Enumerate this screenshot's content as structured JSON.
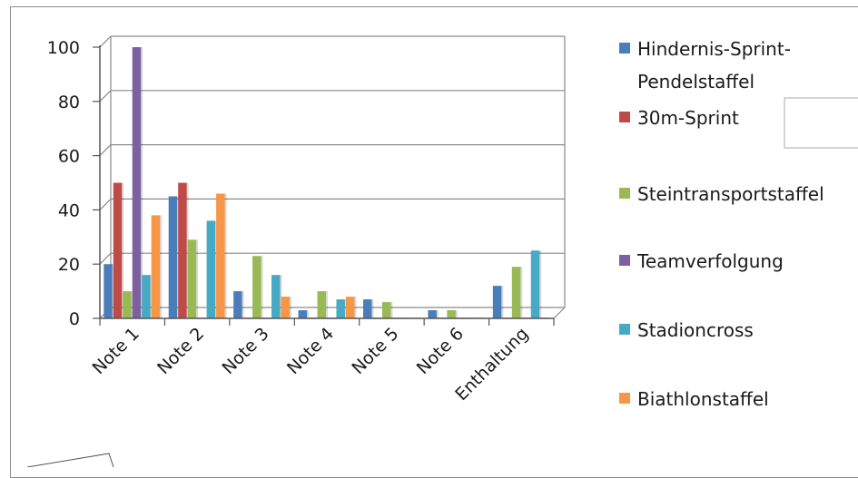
{
  "chart_data": {
    "type": "bar",
    "categories": [
      "Note 1",
      "Note 2",
      "Note 3",
      "Note 4",
      "Note 5",
      "Note 6",
      "Enthaltung"
    ],
    "series": [
      {
        "name": "Hindernis-Sprint-Pendelstaffel",
        "legend_lines": [
          "Hindernis-Sprint-",
          "Pendelstaffel"
        ],
        "color": "#4A7EBB",
        "values": [
          20,
          45,
          10,
          3,
          7,
          3,
          12
        ]
      },
      {
        "name": "30m-Sprint",
        "legend_lines": [
          "30m-Sprint"
        ],
        "color": "#BE4B48",
        "values": [
          50,
          50,
          0,
          0,
          0,
          0,
          0
        ]
      },
      {
        "name": "Steintransportstaffel",
        "legend_lines": [
          "Steintransportstaffel"
        ],
        "color": "#98B954",
        "values": [
          10,
          29,
          23,
          10,
          6,
          3,
          19
        ]
      },
      {
        "name": "Teamverfolgung",
        "legend_lines": [
          "Teamverfolgung"
        ],
        "color": "#7D60A0",
        "values": [
          100,
          0,
          0,
          0,
          0,
          0,
          0
        ]
      },
      {
        "name": "Stadioncross",
        "legend_lines": [
          "Stadioncross"
        ],
        "color": "#46AAC5",
        "values": [
          16,
          36,
          16,
          7,
          0,
          0,
          25
        ]
      },
      {
        "name": "Biathlonstaffel",
        "legend_lines": [
          "Biathlonstaffel"
        ],
        "color": "#F79646",
        "values": [
          38,
          46,
          8,
          8,
          0,
          0,
          0
        ]
      }
    ],
    "ylim": [
      0,
      100
    ],
    "yticks": [
      0,
      20,
      40,
      60,
      80,
      100
    ],
    "grid": true,
    "legend_position": "right",
    "title": "",
    "xlabel": "",
    "ylabel": ""
  }
}
